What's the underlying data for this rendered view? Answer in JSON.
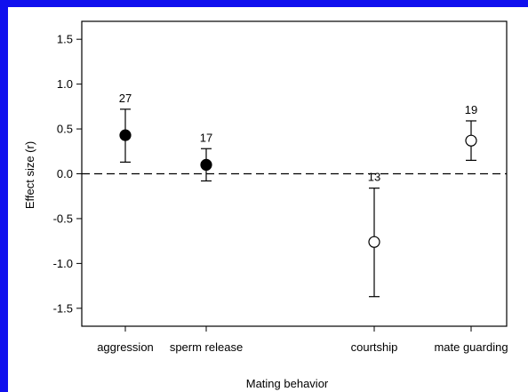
{
  "chart_data": {
    "type": "scatter",
    "xlabel": "Mating behavior",
    "ylabel": "Effect size (r)",
    "ylim": [
      -1.7,
      1.7
    ],
    "yticks": [
      "1.5",
      "1.0",
      "0.5",
      "0.0",
      "-0.5",
      "-1.0",
      "-1.5"
    ],
    "categories": [
      "aggression",
      "sperm release",
      "courtship",
      "mate guarding"
    ],
    "points": [
      {
        "category": "aggression",
        "y": 0.43,
        "lower": 0.13,
        "upper": 0.72,
        "n": "27",
        "filled": true
      },
      {
        "category": "sperm release",
        "y": 0.1,
        "lower": -0.08,
        "upper": 0.28,
        "n": "17",
        "filled": true
      },
      {
        "category": "courtship",
        "y": -0.76,
        "lower": -1.37,
        "upper": -0.16,
        "n": "13",
        "filled": false
      },
      {
        "category": "mate guarding",
        "y": 0.37,
        "lower": 0.15,
        "upper": 0.59,
        "n": "19",
        "filled": false
      }
    ],
    "reference_line": {
      "y": 0.0,
      "style": "dashed"
    },
    "grid": false,
    "legend": "none"
  },
  "colors": {
    "frame": "#1010ee",
    "axis": "#000000",
    "marker_filled": "#000000",
    "marker_open": "#ffffff"
  }
}
